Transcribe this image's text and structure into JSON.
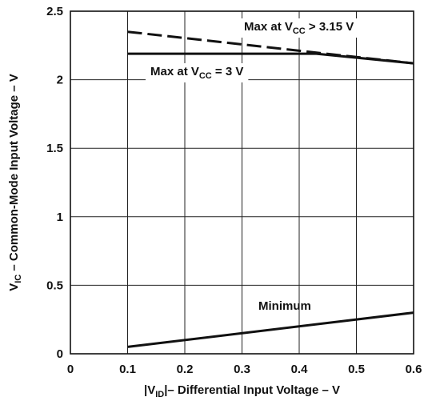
{
  "chart_data": {
    "type": "line",
    "xlabel": {
      "pre": "|V",
      "sub": "ID",
      "post": "|– Differential Input  Voltage – V"
    },
    "ylabel": {
      "pre": "V",
      "sub": "IC",
      "post": " – Common-Mode Input Voltage – V"
    },
    "xlim": [
      0,
      0.6
    ],
    "ylim": [
      0,
      2.5
    ],
    "x_ticks": [
      0,
      0.1,
      0.2,
      0.3,
      0.4,
      0.5,
      0.6
    ],
    "x_tick_labels": [
      "0",
      "0.1",
      "0.2",
      "0.3",
      "0.4",
      "0.5",
      "0.6"
    ],
    "y_ticks": [
      0,
      0.5,
      1,
      1.5,
      2,
      2.5
    ],
    "y_tick_labels": [
      "0",
      "0.5",
      "1",
      "1.5",
      "2",
      "2.5"
    ],
    "grid": true,
    "series": [
      {
        "name": "Max at VCC > 3.15 V",
        "label": {
          "pre": "Max at V",
          "sub": "CC",
          "post": " > 3.15 V"
        },
        "style": "dashed",
        "x": [
          0.1,
          0.6
        ],
        "y": [
          2.35,
          2.12
        ]
      },
      {
        "name": "Max at VCC = 3 V",
        "label": {
          "pre": "Max at V",
          "sub": "CC",
          "post": " = 3 V"
        },
        "style": "solid",
        "x": [
          0.1,
          0.43,
          0.6
        ],
        "y": [
          2.19,
          2.19,
          2.12
        ]
      },
      {
        "name": "Minimum",
        "label": {
          "pre": "Minimum",
          "sub": "",
          "post": ""
        },
        "style": "solid",
        "x": [
          0.1,
          0.6
        ],
        "y": [
          0.05,
          0.3
        ]
      }
    ]
  }
}
